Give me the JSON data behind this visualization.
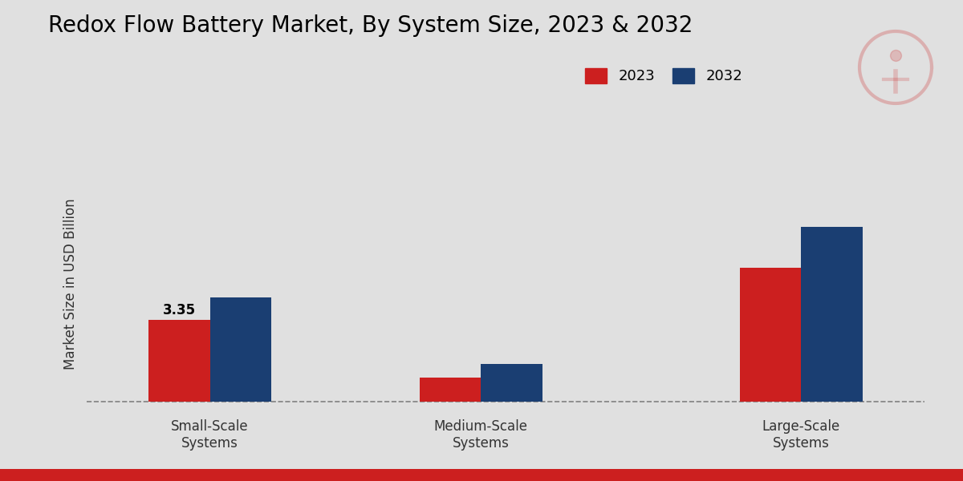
{
  "title": "Redox Flow Battery Market, By System Size, 2023 & 2032",
  "ylabel": "Market Size in USD Billion",
  "categories": [
    "Small-Scale\nSystems",
    "Medium-Scale\nSystems",
    "Large-Scale\nSystems"
  ],
  "values_2023": [
    3.35,
    1.0,
    5.5
  ],
  "values_2032": [
    4.3,
    1.55,
    7.2
  ],
  "color_2023": "#cc1f1f",
  "color_2032": "#1a3e72",
  "bar_annotation": "3.35",
  "background_color": "#e0e0e0",
  "title_fontsize": 20,
  "label_fontsize": 12,
  "tick_fontsize": 12,
  "legend_fontsize": 13,
  "annotation_fontsize": 12,
  "ylim_max": 10,
  "bar_width": 0.25,
  "bottom_bar_color": "#cc1f1f"
}
